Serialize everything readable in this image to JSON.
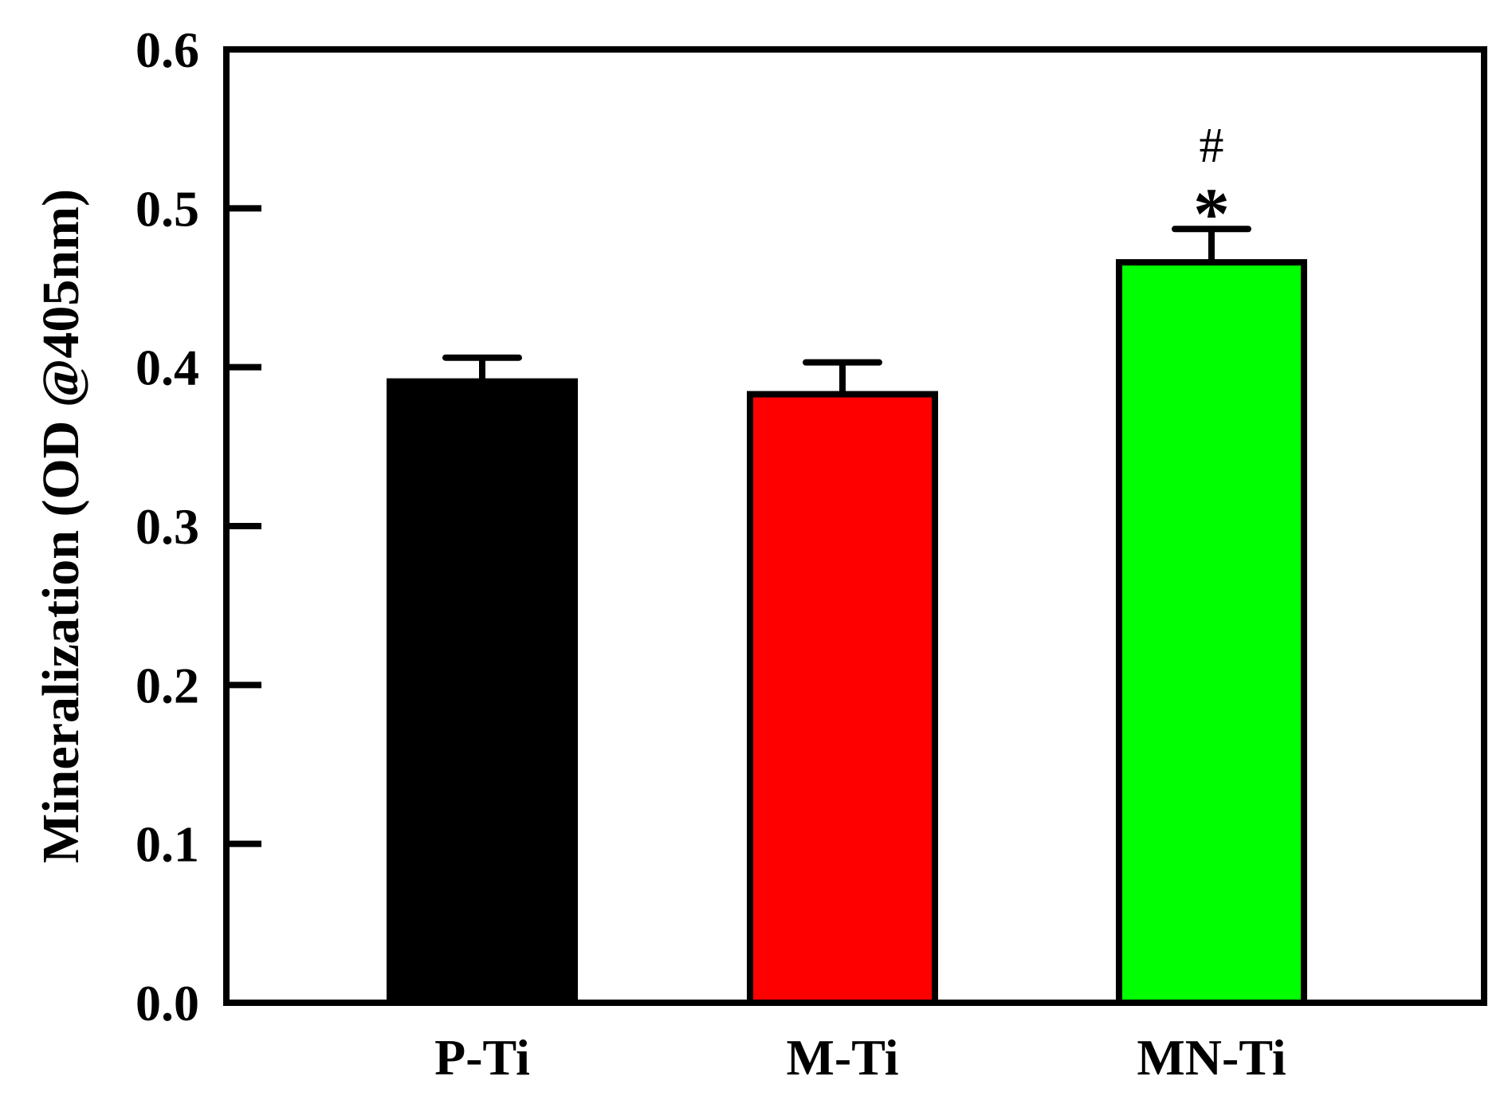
{
  "chart_data": {
    "type": "bar",
    "categories": [
      "P-Ti",
      "M-Ti",
      "MN-Ti"
    ],
    "values": [
      0.391,
      0.383,
      0.466
    ],
    "errors": [
      0.015,
      0.02,
      0.021
    ],
    "colors": [
      "#000000",
      "#ff0000",
      "#00ff00"
    ],
    "title": "",
    "xlabel": "",
    "ylabel": "Mineralization (OD @405nm)",
    "ylim": [
      0,
      0.6
    ],
    "yticks": [
      0.0,
      0.1,
      0.2,
      0.3,
      0.4,
      0.5,
      0.6
    ],
    "ytick_labels": [
      "0.0",
      "0.1",
      "0.2",
      "0.3",
      "0.4",
      "0.5",
      "0.6"
    ],
    "annotations": [
      {
        "category": "MN-Ti",
        "symbols": [
          "#",
          "*"
        ]
      }
    ],
    "grid": false,
    "legend": "none"
  }
}
